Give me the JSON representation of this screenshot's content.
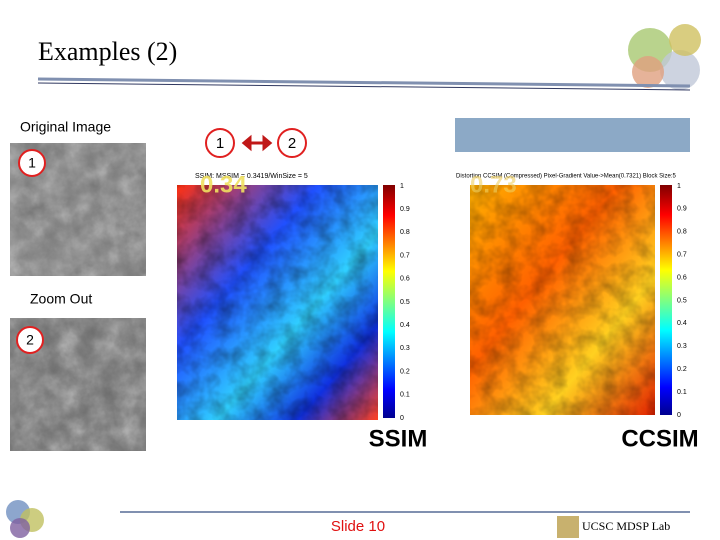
{
  "header": {
    "title": "Examples (2)"
  },
  "left_panel": {
    "original_label": "Original Image",
    "original_badge": "1",
    "zoom_label": "Zoom Out",
    "zoom_badge": "2"
  },
  "comparison": {
    "badge_a": "1",
    "badge_b": "2"
  },
  "maps": [
    {
      "caption": "SSIM: MSSIM = 0.3419/WinSize = 5",
      "score": "0.34",
      "name": "SSIM",
      "colorbar_ticks": [
        "1",
        "0.9",
        "0.8",
        "0.7",
        "0.6",
        "0.5",
        "0.4",
        "0.3",
        "0.2",
        "0.1",
        "0"
      ]
    },
    {
      "caption": "Distortion CCSIM (Compressed) Pixel-Gradient Value->Mean(0.7321) Block Size:5",
      "score": "0.73",
      "name": "CCSIM",
      "colorbar_ticks": [
        "1",
        "0.9",
        "0.8",
        "0.7",
        "0.6",
        "0.5",
        "0.4",
        "0.3",
        "0.2",
        "0.1",
        "0"
      ]
    }
  ],
  "footer": {
    "slide": "Slide 10",
    "lab": "UCSC MDSP Lab"
  }
}
